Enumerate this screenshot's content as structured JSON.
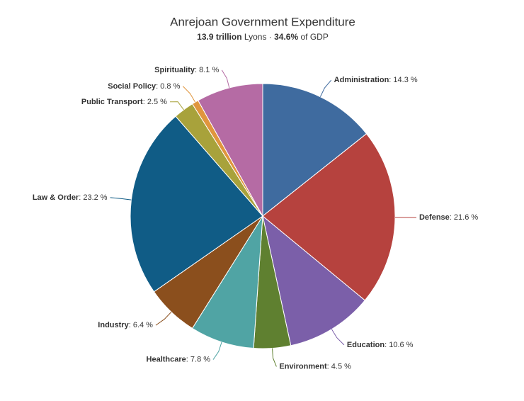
{
  "chart_data": {
    "type": "pie",
    "title": "Anrejoan Government Expenditure",
    "subtitle_parts": [
      "13.9 trillion",
      " Lyons · ",
      "34.6%",
      " of GDP"
    ],
    "label_separator": ": ",
    "categories": [
      "Administration",
      "Defense",
      "Education",
      "Environment",
      "Healthcare",
      "Industry",
      "Law & Order",
      "Public Transport",
      "Social Policy",
      "Spirituality"
    ],
    "values": [
      14.3,
      21.6,
      10.6,
      4.5,
      7.8,
      6.4,
      23.2,
      2.5,
      0.8,
      8.1
    ],
    "value_labels": [
      "14.3 %",
      "21.6 %",
      "10.6 %",
      "4.5 %",
      "7.8 %",
      "6.4 %",
      "23.2 %",
      "2.5 %",
      "0.8 %",
      "8.1 %"
    ],
    "colors": [
      "#3f6b9f",
      "#b6423e",
      "#7b5fa9",
      "#5f8030",
      "#50a4a4",
      "#8b4f1d",
      "#105c86",
      "#a8a23b",
      "#e0953d",
      "#b56ba4"
    ]
  }
}
